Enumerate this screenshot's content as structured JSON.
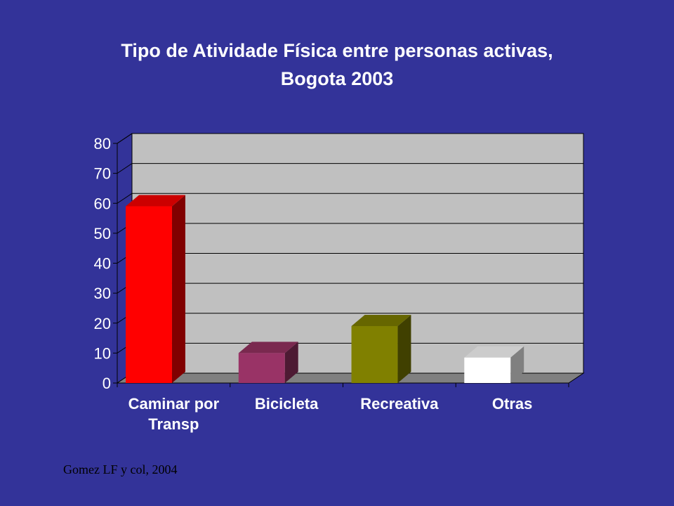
{
  "slide": {
    "title_line1": "Tipo de Atividade Física entre personas activas,",
    "title_line2": "Bogota 2003",
    "source": "Gomez LF y col, 2004"
  },
  "colors": {
    "background": "#333399",
    "plot_back": "#C0C0C0",
    "floor": "#808080",
    "grid": "#000000",
    "title_text": "#FFFFFF",
    "axis_text": "#FFFFFF"
  },
  "chart_data": {
    "type": "bar",
    "style": "3d-column",
    "title": "Tipo de Atividade Física entre personas activas, Bogota 2003",
    "categories": [
      {
        "line1": "Caminar por",
        "line2": "Transp"
      },
      {
        "line1": "Bicicleta",
        "line2": ""
      },
      {
        "line1": "Recreativa",
        "line2": ""
      },
      {
        "line1": "Otras",
        "line2": ""
      }
    ],
    "values": [
      59,
      10,
      19,
      8.5
    ],
    "bar_colors": [
      {
        "front": "#FF0000",
        "top": "#CC0000",
        "side": "#800000"
      },
      {
        "front": "#993366",
        "top": "#7A294F",
        "side": "#4D1A33"
      },
      {
        "front": "#808000",
        "top": "#666600",
        "side": "#404000"
      },
      {
        "front": "#FFFFFF",
        "top": "#CCCCCC",
        "side": "#808080"
      }
    ],
    "yticks": [
      "0",
      "10",
      "20",
      "30",
      "40",
      "50",
      "60",
      "70",
      "80"
    ],
    "ylim": [
      0,
      80
    ],
    "grid": true,
    "legend": "none",
    "xlabel": "",
    "ylabel": ""
  }
}
